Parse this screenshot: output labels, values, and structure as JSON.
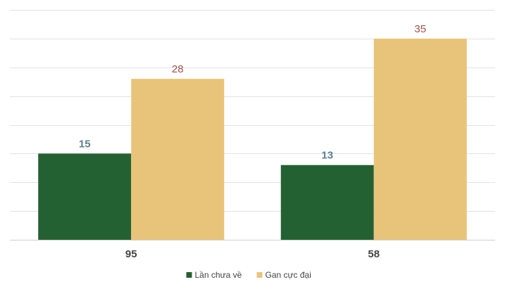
{
  "chart_data": {
    "type": "bar",
    "categories": [
      "95",
      "58"
    ],
    "series": [
      {
        "name": "Lần chưa về",
        "values": [
          15,
          13
        ],
        "color": "#246132",
        "label_color": "#5b8291"
      },
      {
        "name": "Gan cực đại",
        "values": [
          28,
          35
        ],
        "color": "#e8c47a",
        "label_color": "#a0514a"
      }
    ],
    "ylim": [
      0,
      40
    ],
    "grid": true,
    "legend_position": "bottom-center"
  }
}
